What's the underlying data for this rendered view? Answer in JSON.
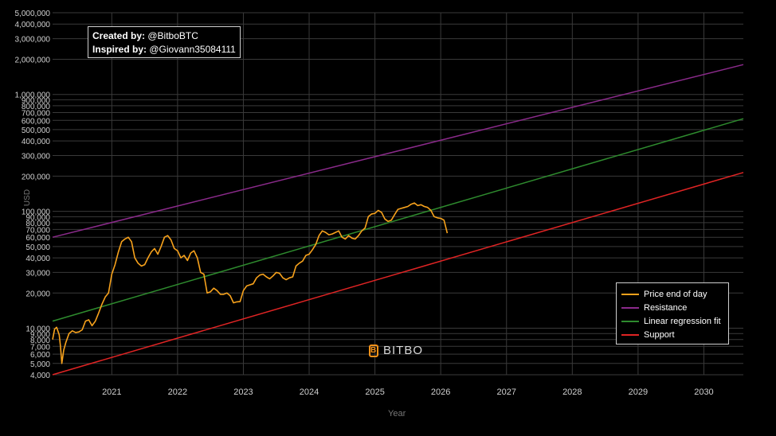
{
  "credits": {
    "created_label": "Created by:",
    "created_value": "@BitboBTC",
    "inspired_label": "Inspired by:",
    "inspired_value": "@Giovann35084111"
  },
  "watermark": "BITBO",
  "colors": {
    "background": "#000000",
    "grid": "#3a3a3a",
    "price": "#f7a21c",
    "resistance": "#8b2a8b",
    "regression": "#2e8b2e",
    "support": "#e02424"
  },
  "chart_data": {
    "type": "line",
    "title": "",
    "xlabel": "Year",
    "ylabel": "USD",
    "y_scale": "log",
    "ylim": [
      4000,
      5000000
    ],
    "xlim": [
      2020.1,
      2030.6
    ],
    "grid": true,
    "legend_position": "bottom-right",
    "y_ticks": [
      {
        "value": 4000,
        "label": "4,000"
      },
      {
        "value": 5000,
        "label": "5,000"
      },
      {
        "value": 6000,
        "label": "6,000"
      },
      {
        "value": 7000,
        "label": "7,000"
      },
      {
        "value": 8000,
        "label": "8,000"
      },
      {
        "value": 9000,
        "label": "9,000"
      },
      {
        "value": 10000,
        "label": "10,000"
      },
      {
        "value": 20000,
        "label": "20,000"
      },
      {
        "value": 30000,
        "label": "30,000"
      },
      {
        "value": 40000,
        "label": "40,000"
      },
      {
        "value": 50000,
        "label": "50,000"
      },
      {
        "value": 60000,
        "label": "60,000"
      },
      {
        "value": 70000,
        "label": "70,000"
      },
      {
        "value": 80000,
        "label": "80,000"
      },
      {
        "value": 90000,
        "label": "90,000"
      },
      {
        "value": 100000,
        "label": "100,000"
      },
      {
        "value": 200000,
        "label": "200,000"
      },
      {
        "value": 300000,
        "label": "300,000"
      },
      {
        "value": 400000,
        "label": "400,000"
      },
      {
        "value": 500000,
        "label": "500,000"
      },
      {
        "value": 600000,
        "label": "600,000"
      },
      {
        "value": 700000,
        "label": "700,000"
      },
      {
        "value": 800000,
        "label": "800,000"
      },
      {
        "value": 900000,
        "label": "900,000"
      },
      {
        "value": 1000000,
        "label": "1,000,000"
      },
      {
        "value": 2000000,
        "label": "2,000,000"
      },
      {
        "value": 3000000,
        "label": "3,000,000"
      },
      {
        "value": 4000000,
        "label": "4,000,000"
      },
      {
        "value": 5000000,
        "label": "5,000,000"
      }
    ],
    "x_ticks": [
      {
        "value": 2021,
        "label": "2021"
      },
      {
        "value": 2022,
        "label": "2022"
      },
      {
        "value": 2023,
        "label": "2023"
      },
      {
        "value": 2024,
        "label": "2024"
      },
      {
        "value": 2025,
        "label": "2025"
      },
      {
        "value": 2026,
        "label": "2026"
      },
      {
        "value": 2027,
        "label": "2027"
      },
      {
        "value": 2028,
        "label": "2028"
      },
      {
        "value": 2029,
        "label": "2029"
      },
      {
        "value": 2030,
        "label": "2030"
      }
    ],
    "series": [
      {
        "name": "Price end of day",
        "color": "#f7a21c",
        "x": [
          2020.1,
          2020.13,
          2020.16,
          2020.18,
          2020.2,
          2020.22,
          2020.24,
          2020.27,
          2020.3,
          2020.35,
          2020.4,
          2020.45,
          2020.5,
          2020.55,
          2020.6,
          2020.65,
          2020.7,
          2020.75,
          2020.8,
          2020.85,
          2020.9,
          2020.95,
          2021.0,
          2021.05,
          2021.1,
          2021.15,
          2021.2,
          2021.25,
          2021.3,
          2021.35,
          2021.4,
          2021.45,
          2021.5,
          2021.55,
          2021.6,
          2021.65,
          2021.7,
          2021.75,
          2021.8,
          2021.85,
          2021.9,
          2021.95,
          2022.0,
          2022.05,
          2022.1,
          2022.15,
          2022.2,
          2022.25,
          2022.3,
          2022.35,
          2022.4,
          2022.45,
          2022.5,
          2022.55,
          2022.6,
          2022.65,
          2022.7,
          2022.75,
          2022.8,
          2022.85,
          2022.9,
          2022.95,
          2023.0,
          2023.05,
          2023.1,
          2023.15,
          2023.2,
          2023.25,
          2023.3,
          2023.35,
          2023.4,
          2023.45,
          2023.5,
          2023.55,
          2023.6,
          2023.65,
          2023.7,
          2023.75,
          2023.8,
          2023.85,
          2023.9,
          2023.95,
          2024.0,
          2024.05,
          2024.1,
          2024.15,
          2024.2,
          2024.25,
          2024.3,
          2024.35,
          2024.4,
          2024.45,
          2024.5,
          2024.55,
          2024.6,
          2024.65,
          2024.7,
          2024.75,
          2024.8,
          2024.85,
          2024.9,
          2024.95,
          2025.0,
          2025.05,
          2025.1,
          2025.15,
          2025.2,
          2025.25,
          2025.3,
          2025.35,
          2025.4,
          2025.45,
          2025.5,
          2025.55,
          2025.6,
          2025.65,
          2025.7,
          2025.75,
          2025.8,
          2025.85,
          2025.9,
          2025.95,
          2026.0,
          2026.05,
          2026.1
        ],
        "values": [
          8000,
          9800,
          10200,
          9500,
          8800,
          7000,
          5000,
          6500,
          7500,
          9000,
          9500,
          9200,
          9300,
          9700,
          11500,
          11800,
          10500,
          11500,
          13500,
          16000,
          18500,
          20000,
          29000,
          35000,
          45000,
          55000,
          58000,
          60000,
          55000,
          40000,
          36000,
          34000,
          35000,
          40000,
          45000,
          48000,
          43000,
          50000,
          60000,
          62000,
          57000,
          48000,
          46000,
          40000,
          42000,
          38000,
          44000,
          46000,
          40000,
          30000,
          29000,
          20000,
          20500,
          22000,
          21000,
          19500,
          19500,
          20000,
          19000,
          16500,
          16800,
          16900,
          21000,
          23000,
          23500,
          24000,
          27000,
          28500,
          29000,
          27500,
          26500,
          28000,
          30000,
          29500,
          27000,
          26000,
          27000,
          27500,
          34000,
          36000,
          37500,
          42000,
          43000,
          47000,
          52000,
          62000,
          68000,
          66000,
          63000,
          64000,
          66000,
          68000,
          60000,
          58000,
          62000,
          59000,
          58000,
          62000,
          68000,
          72000,
          90000,
          95000,
          96000,
          102000,
          98000,
          86000,
          82000,
          84000,
          94000,
          104000,
          106000,
          108000,
          110000,
          115000,
          118000,
          112000,
          114000,
          110000,
          108000,
          102000,
          90000,
          88000,
          87000,
          84000,
          65000
        ]
      },
      {
        "name": "Resistance",
        "color": "#8b2a8b",
        "x": [
          2020.1,
          2030.6
        ],
        "values": [
          60000,
          1800000
        ]
      },
      {
        "name": "Linear regression fit",
        "color": "#2e8b2e",
        "x": [
          2020.1,
          2030.6
        ],
        "values": [
          11500,
          620000
        ]
      },
      {
        "name": "Support",
        "color": "#e02424",
        "x": [
          2020.1,
          2030.6
        ],
        "values": [
          4000,
          215000
        ]
      }
    ]
  }
}
